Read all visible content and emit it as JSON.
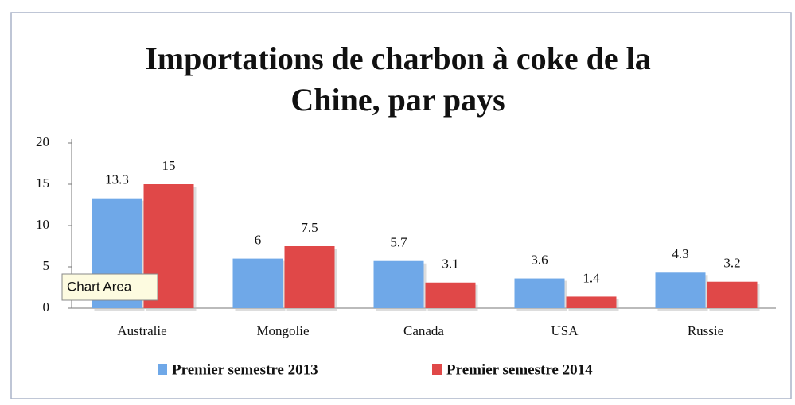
{
  "chart_data": {
    "type": "bar",
    "title": "Importations de charbon à coke de la Chine, par pays",
    "categories": [
      "Australie",
      "Mongolie",
      "Canada",
      "USA",
      "Russie"
    ],
    "series": [
      {
        "name": "Premier semestre 2013",
        "color": "#6fa8e8",
        "values": [
          13.3,
          6,
          5.7,
          3.6,
          4.3
        ]
      },
      {
        "name": "Premier semestre 2014",
        "color": "#e04848",
        "values": [
          15,
          7.5,
          3.1,
          1.4,
          3.2
        ]
      }
    ],
    "ylim": [
      0,
      20
    ],
    "yticks": [
      0,
      5,
      10,
      15,
      20
    ],
    "grid": false,
    "legend": "bottom",
    "tooltip": "Chart Area"
  }
}
